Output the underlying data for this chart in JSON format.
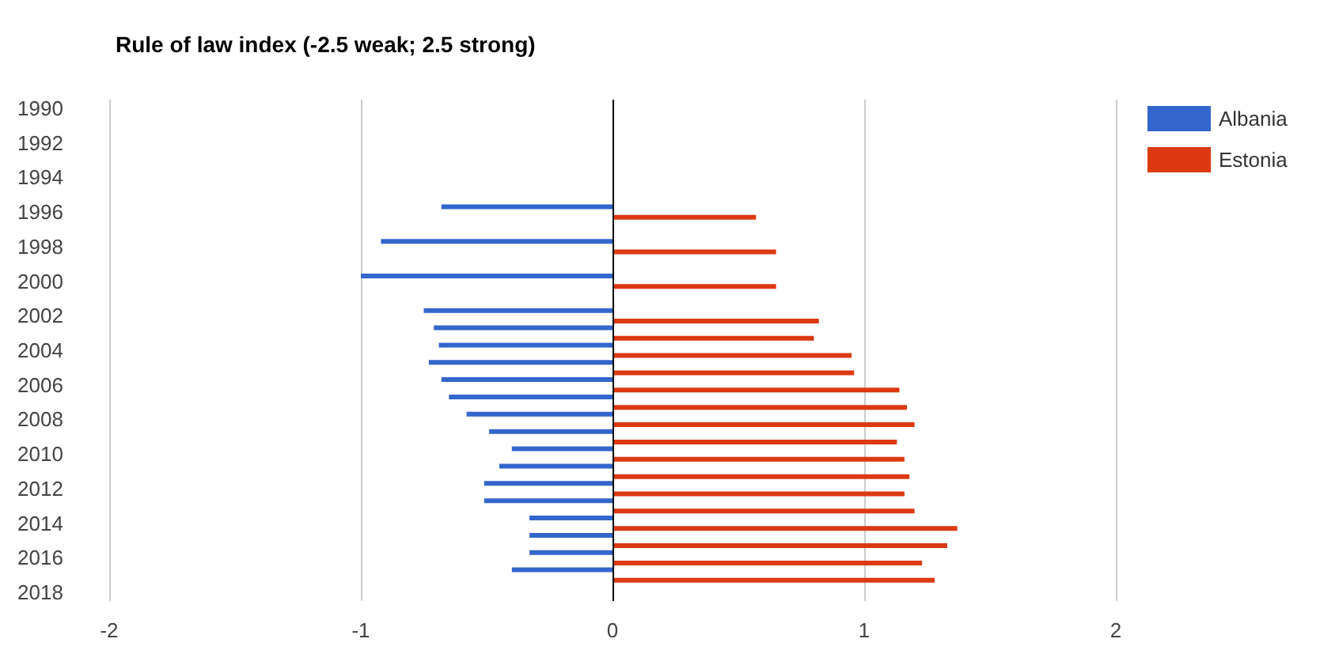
{
  "chart_data": {
    "type": "bar",
    "orientation": "horizontal",
    "title": "Rule of law index (-2.5 weak; 2.5 strong)",
    "categories": [
      "1990",
      null,
      "1992",
      null,
      "1994",
      null,
      "1996",
      null,
      "1998",
      null,
      "2000",
      null,
      "2002",
      null,
      "2004",
      null,
      "2006",
      null,
      "2008",
      null,
      "2010",
      null,
      "2012",
      null,
      "2014",
      null,
      "2016",
      null,
      "2018"
    ],
    "series": [
      {
        "name": "Albania",
        "color": "#3366cc",
        "values": [
          null,
          null,
          null,
          null,
          null,
          null,
          -0.68,
          null,
          -0.92,
          null,
          -1.0,
          null,
          -0.75,
          -0.71,
          -0.69,
          -0.73,
          -0.68,
          -0.65,
          -0.58,
          -0.49,
          -0.4,
          -0.45,
          -0.51,
          -0.51,
          -0.33,
          -0.33,
          -0.33,
          -0.4,
          null
        ]
      },
      {
        "name": "Estonia",
        "color": "#dc3912",
        "values": [
          null,
          null,
          null,
          null,
          null,
          null,
          0.57,
          null,
          0.65,
          null,
          0.65,
          null,
          0.82,
          0.8,
          0.95,
          0.96,
          1.14,
          1.17,
          1.2,
          1.13,
          1.16,
          1.18,
          1.16,
          1.2,
          1.37,
          1.33,
          1.23,
          1.28,
          null
        ]
      }
    ],
    "xlim": [
      -2,
      2
    ],
    "xticks": [
      -2,
      -1,
      0,
      1,
      2
    ],
    "grid": "x",
    "legend": "top right"
  }
}
